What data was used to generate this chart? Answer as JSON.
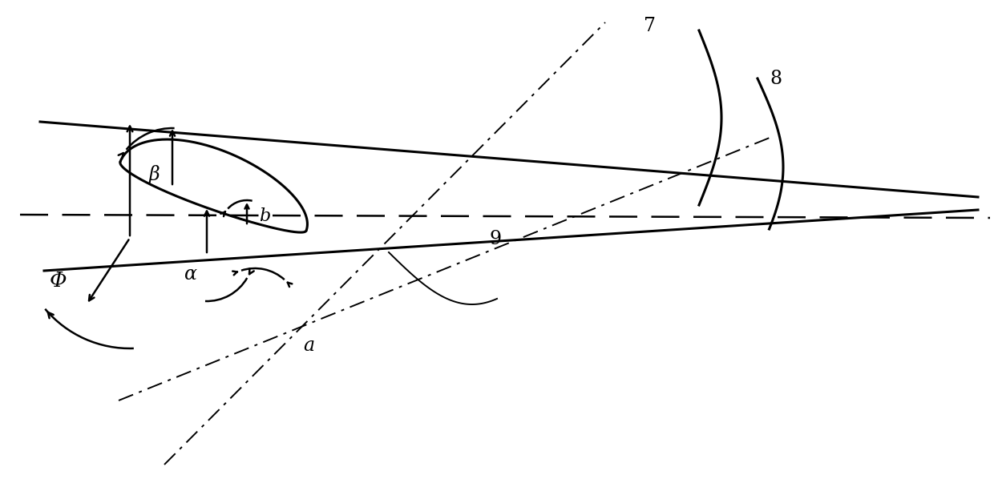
{
  "bg_color": "#ffffff",
  "line_color": "#000000",
  "lw_thick": 2.2,
  "lw_medium": 1.8,
  "lw_thin": 1.4,
  "label_7": "7",
  "label_8": "8",
  "label_9": "9",
  "label_phi": "Φ",
  "label_beta": "β",
  "label_alpha": "α",
  "label_a": "a",
  "label_b": "b"
}
